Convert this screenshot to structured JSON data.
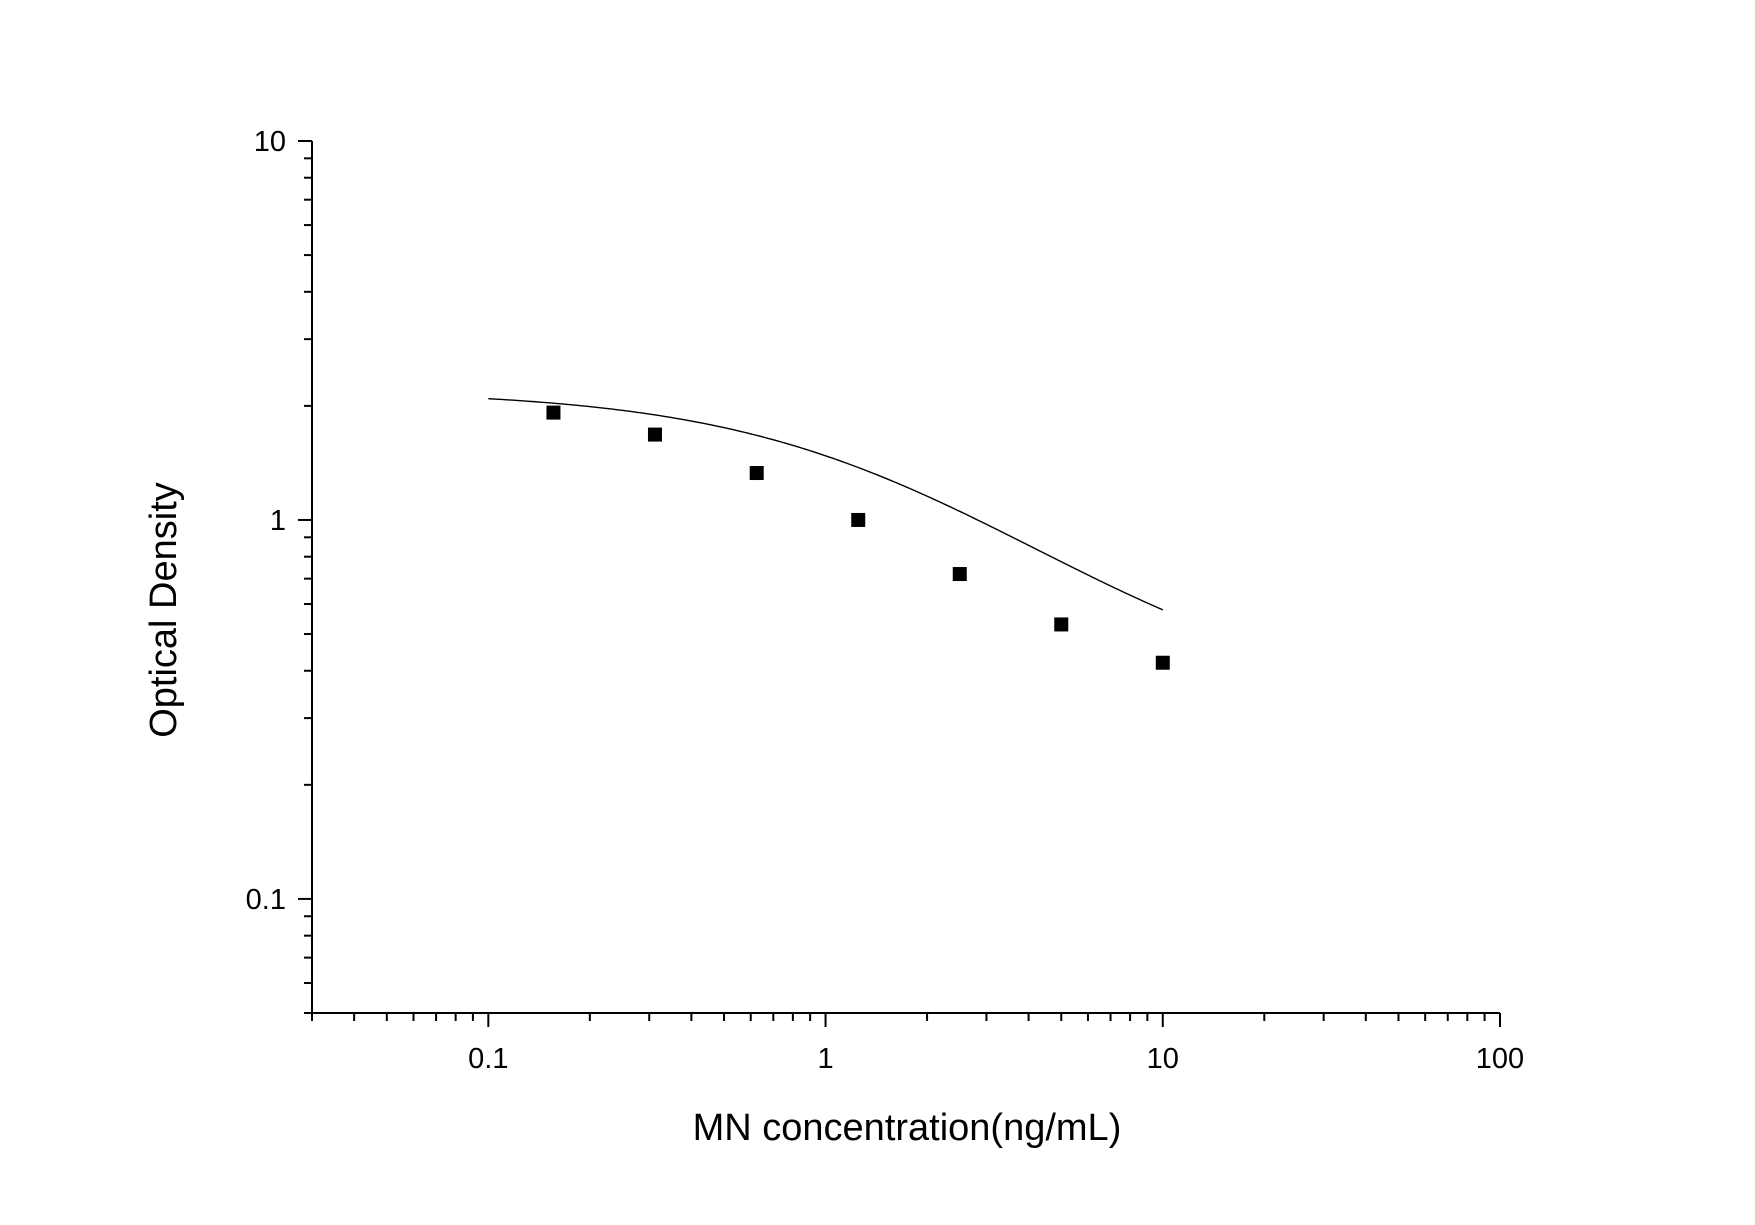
{
  "chart_data": {
    "type": "scatter",
    "title": "",
    "xlabel": "MN concentration(ng/mL)",
    "ylabel": "Optical Density",
    "x_scale": "log",
    "y_scale": "log",
    "xlim": [
      0.03,
      100
    ],
    "ylim": [
      0.05,
      10
    ],
    "x_ticks": [
      {
        "value": 0.1,
        "label": "0.1"
      },
      {
        "value": 1,
        "label": "1"
      },
      {
        "value": 10,
        "label": "10"
      },
      {
        "value": 100,
        "label": "100"
      }
    ],
    "y_ticks": [
      {
        "value": 0.1,
        "label": "0.1"
      },
      {
        "value": 1,
        "label": "1"
      },
      {
        "value": 10,
        "label": "10"
      }
    ],
    "grid": false,
    "legend": "none",
    "points": {
      "x": [
        0.156,
        0.312,
        0.625,
        1.25,
        2.5,
        5,
        10
      ],
      "y": [
        1.92,
        1.68,
        1.33,
        1.0,
        0.72,
        0.53,
        0.42
      ]
    },
    "fit_curve": {
      "x_range": [
        0.1,
        10
      ],
      "model": "4PL",
      "A": 2.2,
      "D": 0.32,
      "C": 1.6,
      "B": 1.0
    },
    "colors": {
      "marker": "#000000",
      "line": "#000000",
      "axes": "#000000"
    }
  }
}
